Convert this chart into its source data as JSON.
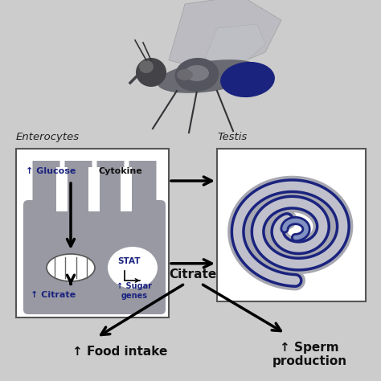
{
  "bg_color": "#cccccc",
  "box_bg": "#ffffff",
  "gray_cell": "#9999a4",
  "dark_blue": "#1a237e",
  "mid_blue": "#3949ab",
  "arrow_color": "#111111",
  "label_blue": "#1a237e",
  "label_black": "#111111",
  "enterocytes_label": "Enterocytes",
  "testis_label": "Testis",
  "glucose_text": "↑ Glucose",
  "cytokine_text": "Cytokine",
  "stat_text": "STAT",
  "sugar_genes_text": "↑ Sugar\ngenes",
  "citrate_text": "↑ Citrate",
  "citrate_center": "Citrate",
  "food_intake_text": "↑ Food intake",
  "sperm_prod_text": "↑ Sperm\nproduction"
}
